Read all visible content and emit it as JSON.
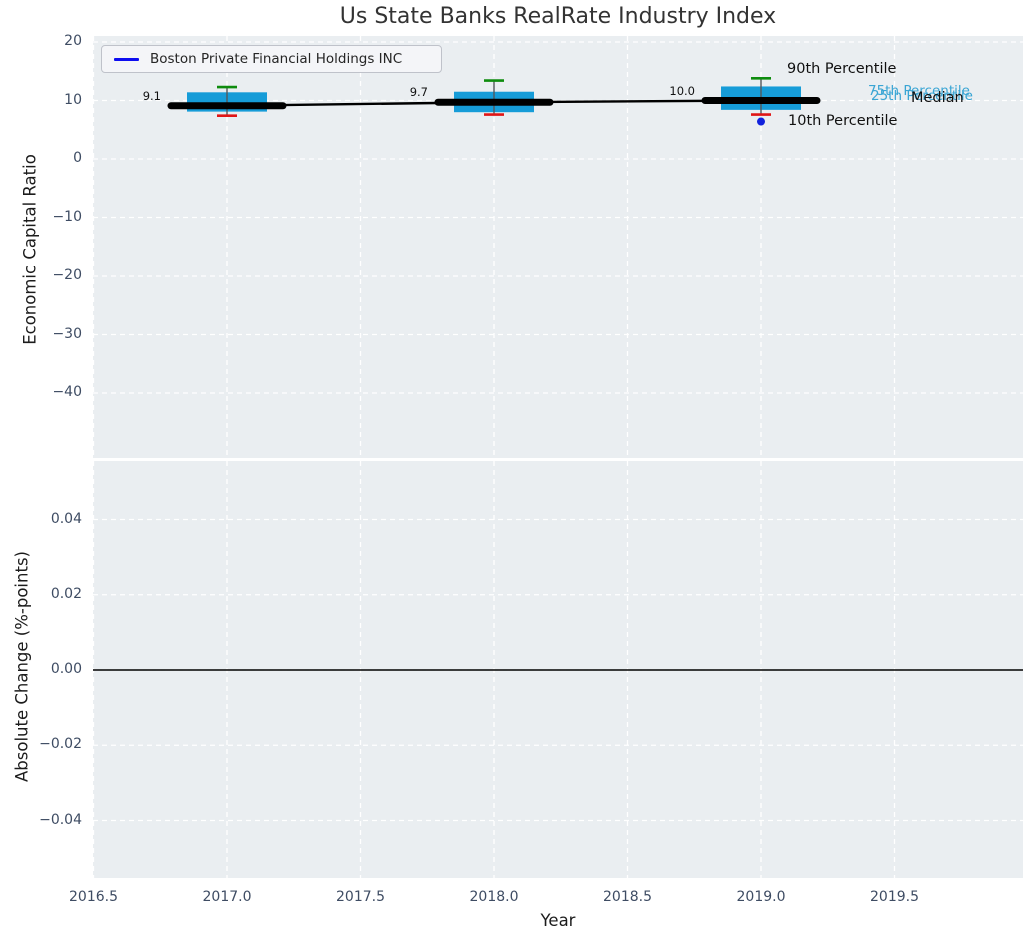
{
  "title": "Us State Banks RealRate Industry Index",
  "legend": {
    "label": "Boston Private Financial Holdings INC",
    "line_color": "#0d0df0"
  },
  "axes": {
    "top": {
      "ylabel": "Economic Capital Ratio"
    },
    "bottom": {
      "ylabel": "Absolute Change (%-points)",
      "xlabel": "Year"
    }
  },
  "annotations": {
    "p90": {
      "text": "90th Percentile",
      "color": "#111111"
    },
    "p75": {
      "text": "75th Percentile",
      "color": "#3aa5d4"
    },
    "p25": {
      "text": "25th Percentile",
      "color": "#3aa5d4"
    },
    "median": {
      "text": "Median",
      "color": "#111111"
    },
    "p10": {
      "text": "10th Percentile",
      "color": "#111111"
    }
  },
  "chart_data": {
    "type": "boxplot+line",
    "title": "Us State Banks RealRate Industry Index",
    "xlabel": "Year",
    "top_ylabel": "Economic Capital Ratio",
    "bottom_ylabel": "Absolute Change (%-points)",
    "x_ticks": {
      "labels": [
        "2016.5",
        "2017.0",
        "2017.5",
        "2018.0",
        "2018.5",
        "2019.0",
        "2019.5"
      ],
      "values": [
        2016.5,
        2017.0,
        2017.5,
        2018.0,
        2018.5,
        2019.0,
        2019.5
      ]
    },
    "top_y_ticks": {
      "labels": [
        "20",
        "10",
        "0",
        "−10",
        "−20",
        "−30",
        "−40"
      ],
      "values": [
        20,
        10,
        0,
        -10,
        -20,
        -30,
        -40
      ]
    },
    "bottom_y_ticks": {
      "labels": [
        "0.04",
        "0.02",
        "0.00",
        "−0.02",
        "−0.04"
      ],
      "values": [
        0.04,
        0.02,
        0.0,
        -0.02,
        -0.04
      ]
    },
    "xlim": [
      2016.48,
      2019.98
    ],
    "top_ylim": [
      -50.5,
      21.0
    ],
    "bottom_ylim": [
      -0.0555,
      0.0555
    ],
    "grid": true,
    "legend_position": "upper left",
    "boxes": [
      {
        "year": 2017,
        "p90": 12.3,
        "q3": 11.4,
        "median": 9.1,
        "q1": 8.1,
        "p10": 7.4,
        "label": "9.1"
      },
      {
        "year": 2018,
        "p90": 13.4,
        "q3": 11.5,
        "median": 9.7,
        "q1": 8.0,
        "p10": 7.6,
        "label": "9.7"
      },
      {
        "year": 2019,
        "p90": 13.8,
        "q3": 12.4,
        "median": 10.0,
        "q1": 8.4,
        "p10": 7.6,
        "label": "10.0"
      }
    ],
    "median_line": {
      "x": [
        2017,
        2018,
        2019
      ],
      "y": [
        9.1,
        9.7,
        10.0
      ]
    },
    "company_point": {
      "x": 2019,
      "y": 6.4,
      "color": "#1122dd"
    },
    "bottom_zero_line": 0.0,
    "colors": {
      "box": "#169cd8",
      "p90_cap": "#0e8c0e",
      "p10_cap": "#e01616",
      "whisker": "#54575b",
      "median_line": "#000000",
      "grid": "#ffffff",
      "plot_bg": "#eaeef1",
      "zero_line": "#000000"
    }
  }
}
